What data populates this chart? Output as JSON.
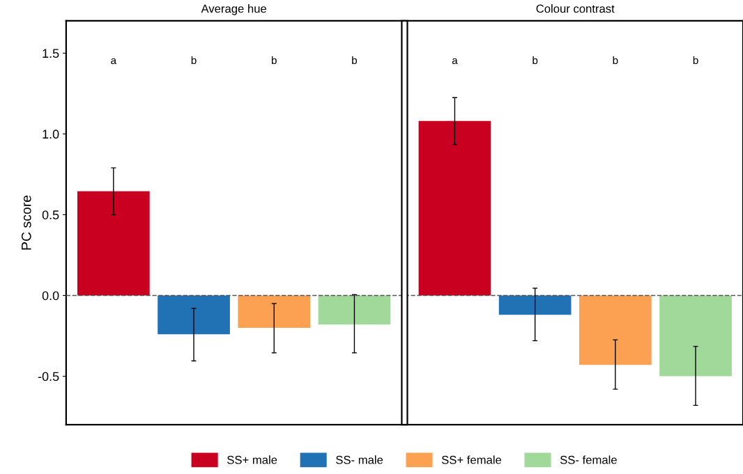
{
  "chart_data": {
    "type": "bar",
    "ylabel": "PC score",
    "categories": [
      "Average hue",
      "Colour contrast"
    ],
    "ylim": [
      -0.8,
      1.7
    ],
    "yticks": [
      {
        "value": -0.5,
        "label": "-0.5"
      },
      {
        "value": 0,
        "label": "0.0"
      },
      0.5,
      {
        "value": 1,
        "label": "1.0"
      },
      1.5
    ],
    "grid": false,
    "legend": "bottom",
    "series": [
      {
        "name": "SS+ male",
        "color": "#ca0020",
        "values": [
          0.645,
          1.08
        ],
        "errors": [
          [
            0.5,
            0.79
          ],
          [
            0.935,
            1.225
          ]
        ]
      },
      {
        "name": "SS- male",
        "color": "#2171b5",
        "values": [
          -0.24,
          -0.12
        ],
        "errors": [
          [
            -0.405,
            -0.08
          ],
          [
            -0.28,
            0.045
          ]
        ]
      },
      {
        "name": "SS+ female",
        "color": "#fca152",
        "values": [
          -0.2,
          -0.43
        ],
        "errors": [
          [
            -0.355,
            -0.05
          ],
          [
            -0.58,
            -0.275
          ]
        ]
      },
      {
        "name": "SS- female",
        "color": "#a1d99b",
        "values": [
          -0.18,
          -0.5
        ],
        "errors": [
          [
            -0.355,
            0.005
          ],
          [
            -0.68,
            -0.315
          ]
        ]
      }
    ],
    "ref_lines": [
      {
        "axis": "y",
        "value": 0,
        "line_style": "dashed",
        "color": "#555555"
      }
    ],
    "annotations": [
      "a",
      "b",
      "b",
      "b",
      "a",
      "b",
      "b",
      "b"
    ]
  }
}
